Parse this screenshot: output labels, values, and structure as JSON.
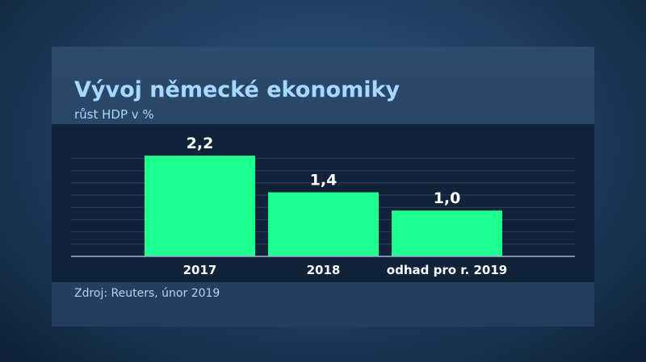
{
  "header": {
    "title": "Vývoj německé ekonomiky",
    "subtitle": "růst HDP v %"
  },
  "footer": {
    "source": "Zdroj: Reuters, únor 2019"
  },
  "colors": {
    "bar": "#1dff8e",
    "title": "#a8d8ff",
    "gridline": "#2c3f5b",
    "axis": "#9fb4cc",
    "label": "#ffffff"
  },
  "chart_data": {
    "type": "bar",
    "title": "Vývoj německé ekonomiky",
    "subtitle": "růst HDP v %",
    "categories": [
      "2017",
      "2018",
      "odhad pro r. 2019"
    ],
    "values": [
      2.2,
      1.4,
      1.0
    ],
    "data_labels": [
      "2,2",
      "1,4",
      "1,0"
    ],
    "ylim": [
      0,
      2.5
    ],
    "grid": true,
    "legend": "none"
  }
}
